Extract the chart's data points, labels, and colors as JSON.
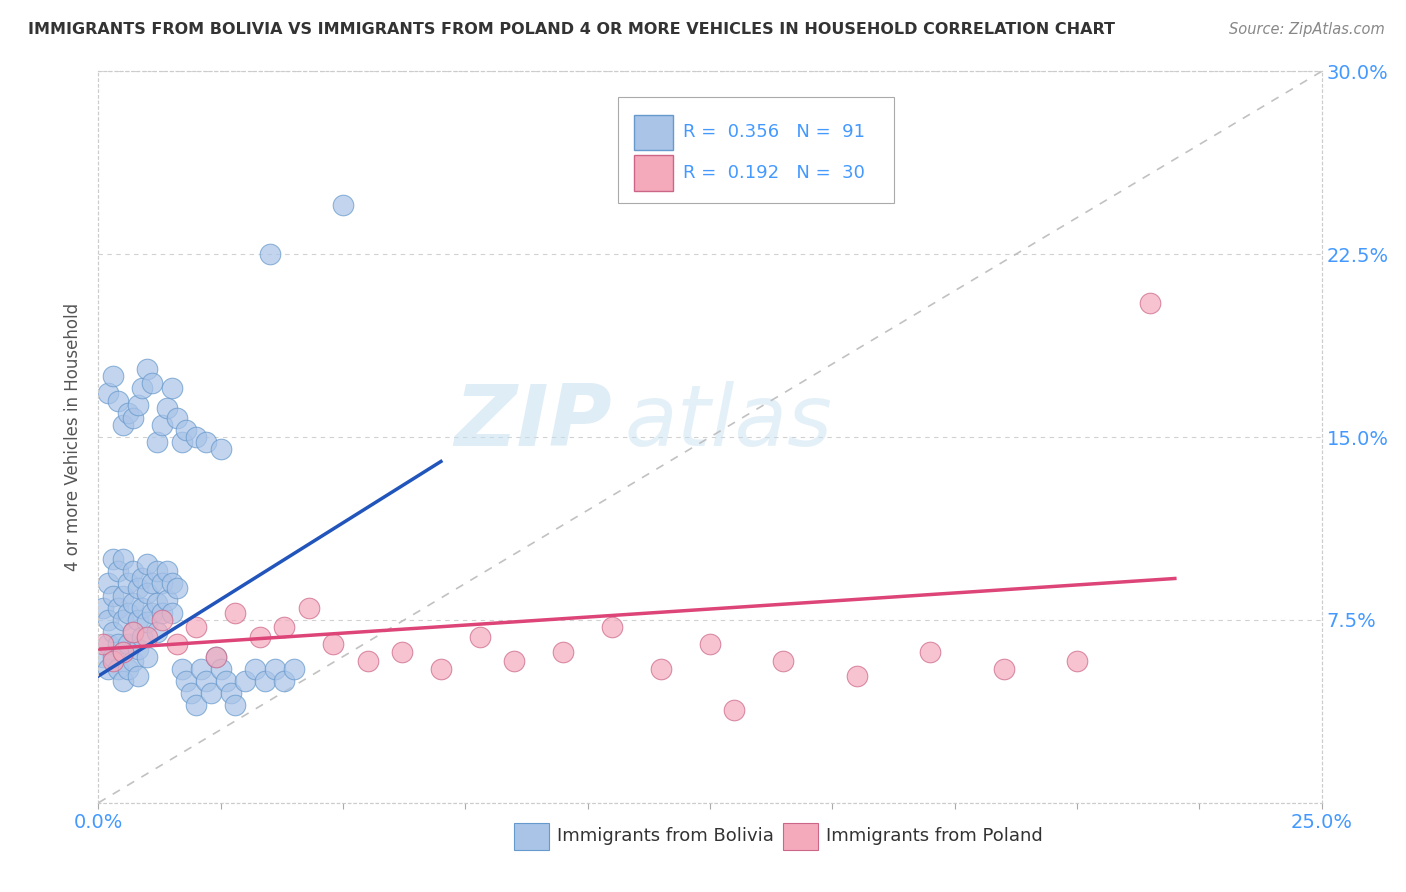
{
  "title": "IMMIGRANTS FROM BOLIVIA VS IMMIGRANTS FROM POLAND 4 OR MORE VEHICLES IN HOUSEHOLD CORRELATION CHART",
  "source": "Source: ZipAtlas.com",
  "ylabel": "4 or more Vehicles in Household",
  "xlim": [
    0.0,
    0.25
  ],
  "ylim": [
    0.0,
    0.3
  ],
  "bolivia_color": "#aac4e8",
  "bolivia_line_color": "#2255bb",
  "poland_color": "#f5aabc",
  "poland_line_color": "#dd4477",
  "diagonal_color": "#bbbbbb",
  "watermark_zip": "ZIP",
  "watermark_atlas": "atlas",
  "background_color": "#ffffff",
  "grid_color": "#cccccc",
  "title_color": "#333333",
  "right_axis_color": "#4499ff",
  "legend_r1": "R =  0.356   N =  91",
  "legend_r2": "R =  0.192   N =  30",
  "bottom_label1": "Immigrants from Bolivia",
  "bottom_label2": "Immigrants from Poland"
}
